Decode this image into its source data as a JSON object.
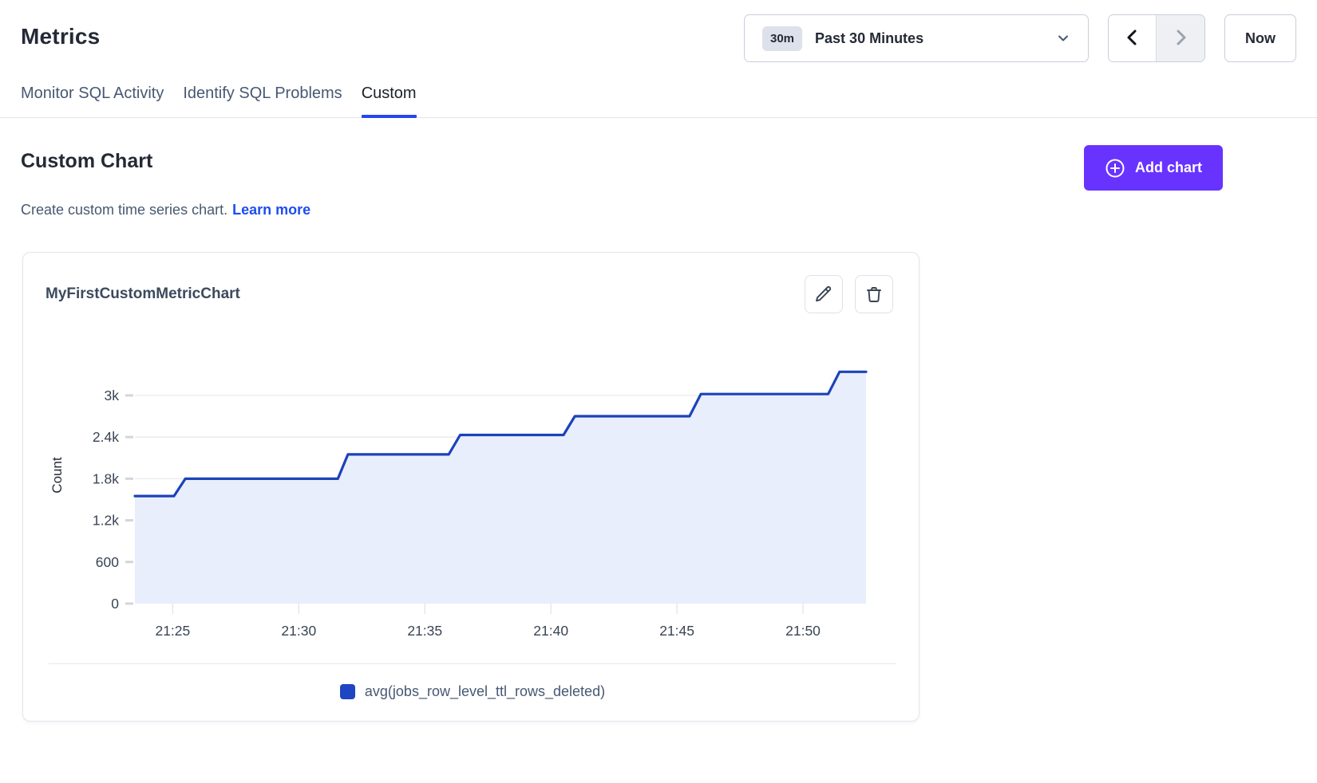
{
  "header": {
    "title": "Metrics"
  },
  "time_selector": {
    "badge": "30m",
    "label": "Past 30 Minutes"
  },
  "pager": {
    "prev": "chevron-left",
    "next": "chevron-right",
    "next_disabled": true
  },
  "now_button": {
    "label": "Now"
  },
  "tabs": [
    {
      "label": "Monitor SQL Activity",
      "active": false
    },
    {
      "label": "Identify SQL Problems",
      "active": false
    },
    {
      "label": "Custom",
      "active": true
    }
  ],
  "custom_section": {
    "title": "Custom Chart",
    "subtitle": "Create custom time series chart.",
    "link_label": "Learn more",
    "add_button_label": "Add chart"
  },
  "chart_card": {
    "title": "MyFirstCustomMetricChart"
  },
  "colors": {
    "accent_blue": "#2745f0",
    "link_blue": "#1d4df2",
    "brand_purple": "#6933ff",
    "line_blue": "#1c42b9",
    "area_fill": "#e8eefc",
    "gridline": "#e9ebef",
    "tick_text": "#394455",
    "legend_swatch": "#1e46c2"
  },
  "chart_data": {
    "type": "area",
    "subtype": "step-line-with-fill",
    "title": "MyFirstCustomMetricChart",
    "xlabel": "",
    "ylabel": "Count",
    "x_unit": "clock time (HH:MM), minutes after 21:00",
    "x_range_minutes": [
      23.5,
      52.5
    ],
    "y_render_max": 3700,
    "grid": true,
    "legend_position": "bottom",
    "legend": [
      {
        "label": "avg(jobs_row_level_ttl_rows_deleted)",
        "color": "#1e46c2"
      }
    ],
    "y_ticks": [
      {
        "value": 0,
        "label": "0"
      },
      {
        "value": 600,
        "label": "600"
      },
      {
        "value": 1200,
        "label": "1.2k"
      },
      {
        "value": 1800,
        "label": "1.8k"
      },
      {
        "value": 2400,
        "label": "2.4k"
      },
      {
        "value": 3000,
        "label": "3k"
      }
    ],
    "x_ticks": [
      {
        "minute": 25,
        "label": "21:25"
      },
      {
        "minute": 30,
        "label": "21:30"
      },
      {
        "minute": 35,
        "label": "21:35"
      },
      {
        "minute": 40,
        "label": "21:40"
      },
      {
        "minute": 45,
        "label": "21:45"
      },
      {
        "minute": 50,
        "label": "21:50"
      }
    ],
    "points": [
      {
        "time": "21:23:30",
        "minute": 23.5,
        "value": 1550
      },
      {
        "time": "21:25:00",
        "minute": 25.05,
        "value": 1550
      },
      {
        "time": "21:25:30",
        "minute": 25.5,
        "value": 1800
      },
      {
        "time": "21:31:30",
        "minute": 31.55,
        "value": 1800
      },
      {
        "time": "21:32:00",
        "minute": 31.95,
        "value": 2150
      },
      {
        "time": "21:36:00",
        "minute": 35.95,
        "value": 2150
      },
      {
        "time": "21:36:30",
        "minute": 36.4,
        "value": 2430
      },
      {
        "time": "21:40:30",
        "minute": 40.5,
        "value": 2430
      },
      {
        "time": "21:41:00",
        "minute": 40.95,
        "value": 2700
      },
      {
        "time": "21:45:30",
        "minute": 45.5,
        "value": 2700
      },
      {
        "time": "21:46:00",
        "minute": 45.95,
        "value": 3020
      },
      {
        "time": "21:51:00",
        "minute": 51.0,
        "value": 3020
      },
      {
        "time": "21:51:30",
        "minute": 51.45,
        "value": 3340
      },
      {
        "time": "21:52:30",
        "minute": 52.5,
        "value": 3340
      }
    ]
  }
}
